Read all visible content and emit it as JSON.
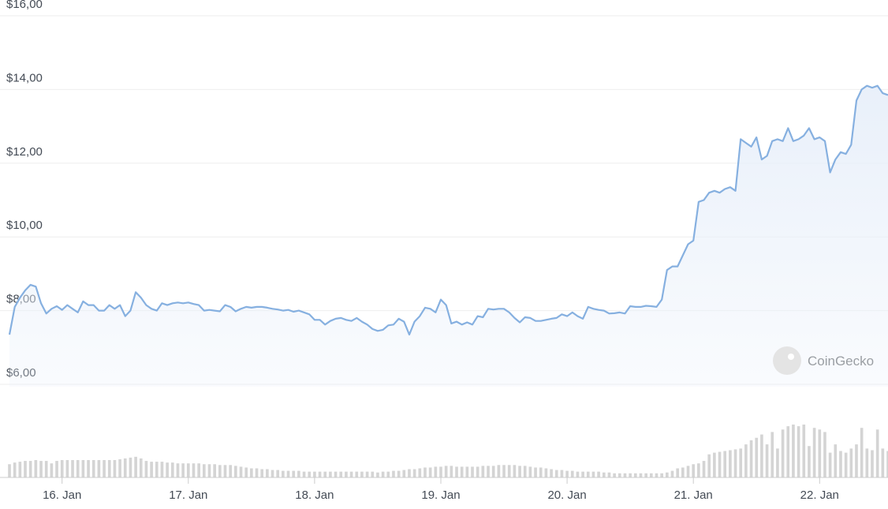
{
  "chart_data": {
    "type": "line",
    "watermark": "CoinGecko",
    "color": "#86b0e0",
    "fill_color": "#e9f0fa",
    "volume_color": "#d4d4d4",
    "grid": true,
    "xlim": [
      -10,
      157
    ],
    "ylim": [
      6,
      16
    ],
    "yticks": [
      {
        "value": 6,
        "label": "$6,00"
      },
      {
        "value": 8,
        "label": "$8,00"
      },
      {
        "value": 10,
        "label": "$10,00"
      },
      {
        "value": 12,
        "label": "$12,00"
      },
      {
        "value": 14,
        "label": "$14,00"
      },
      {
        "value": 16,
        "label": "$16,00"
      }
    ],
    "xticks": [
      {
        "value": 0,
        "label": "16. Jan"
      },
      {
        "value": 24,
        "label": "17. Jan"
      },
      {
        "value": 48,
        "label": "18. Jan"
      },
      {
        "value": 72,
        "label": "19. Jan"
      },
      {
        "value": 96,
        "label": "20. Jan"
      },
      {
        "value": 120,
        "label": "21. Jan"
      },
      {
        "value": 144,
        "label": "22. Jan"
      }
    ],
    "x": [
      -10,
      -9,
      -8,
      -7,
      -6,
      -5,
      -4,
      -3,
      -2,
      -1,
      0,
      1,
      2,
      3,
      4,
      5,
      6,
      7,
      8,
      9,
      10,
      11,
      12,
      13,
      14,
      15,
      16,
      17,
      18,
      19,
      20,
      21,
      22,
      23,
      24,
      25,
      26,
      27,
      28,
      29,
      30,
      31,
      32,
      33,
      34,
      35,
      36,
      37,
      38,
      39,
      40,
      41,
      42,
      43,
      44,
      45,
      46,
      47,
      48,
      49,
      50,
      51,
      52,
      53,
      54,
      55,
      56,
      57,
      58,
      59,
      60,
      61,
      62,
      63,
      64,
      65,
      66,
      67,
      68,
      69,
      70,
      71,
      72,
      73,
      74,
      75,
      76,
      77,
      78,
      79,
      80,
      81,
      82,
      83,
      84,
      85,
      86,
      87,
      88,
      89,
      90,
      91,
      92,
      93,
      94,
      95,
      96,
      97,
      98,
      99,
      100,
      101,
      102,
      103,
      104,
      105,
      106,
      107,
      108,
      109,
      110,
      111,
      112,
      113,
      114,
      115,
      116,
      117,
      118,
      119,
      120,
      121,
      122,
      123,
      124,
      125,
      126,
      127,
      128,
      129,
      130,
      131,
      132,
      133,
      134,
      135,
      136,
      137,
      138,
      139,
      140,
      141,
      142,
      143,
      144,
      145,
      146,
      147,
      148,
      149,
      150,
      151,
      152,
      153,
      154,
      155,
      156,
      157
    ],
    "values": [
      7.35,
      8.1,
      8.35,
      8.55,
      8.7,
      8.65,
      8.2,
      7.92,
      8.05,
      8.12,
      8.02,
      8.15,
      8.05,
      7.95,
      8.25,
      8.15,
      8.15,
      8.0,
      8.0,
      8.15,
      8.05,
      8.15,
      7.85,
      8.0,
      8.5,
      8.35,
      8.15,
      8.05,
      8.0,
      8.2,
      8.15,
      8.2,
      8.22,
      8.2,
      8.22,
      8.18,
      8.15,
      8.0,
      8.02,
      8.0,
      7.98,
      8.15,
      8.1,
      7.98,
      8.05,
      8.1,
      8.08,
      8.1,
      8.1,
      8.08,
      8.05,
      8.03,
      8.0,
      8.02,
      7.97,
      8.0,
      7.95,
      7.9,
      7.75,
      7.75,
      7.62,
      7.72,
      7.78,
      7.8,
      7.75,
      7.72,
      7.8,
      7.7,
      7.62,
      7.5,
      7.45,
      7.48,
      7.6,
      7.62,
      7.78,
      7.7,
      7.35,
      7.7,
      7.85,
      8.08,
      8.05,
      7.95,
      8.3,
      8.15,
      7.65,
      7.7,
      7.62,
      7.68,
      7.62,
      7.85,
      7.82,
      8.05,
      8.03,
      8.05,
      8.05,
      7.95,
      7.8,
      7.68,
      7.82,
      7.8,
      7.72,
      7.72,
      7.75,
      7.78,
      7.8,
      7.9,
      7.85,
      7.95,
      7.85,
      7.78,
      8.1,
      8.05,
      8.02,
      8.0,
      7.92,
      7.93,
      7.95,
      7.92,
      8.12,
      8.1,
      8.1,
      8.13,
      8.12,
      8.1,
      8.3,
      9.1,
      9.2,
      9.2,
      9.5,
      9.8,
      9.9,
      10.95,
      11.0,
      11.2,
      11.25,
      11.2,
      11.3,
      11.35,
      11.25,
      12.65,
      12.55,
      12.45,
      12.7,
      12.1,
      12.2,
      12.6,
      12.65,
      12.6,
      12.95,
      12.6,
      12.65,
      12.75,
      12.95,
      12.65,
      12.7,
      12.6,
      11.75,
      12.1,
      12.3,
      12.25,
      12.5,
      13.7,
      14.0,
      14.1,
      14.05,
      14.1,
      13.9,
      13.85
    ],
    "volumes": [
      16,
      18,
      19,
      20,
      20,
      21,
      20,
      20,
      17,
      20,
      21,
      21,
      21,
      21,
      21,
      21,
      21,
      21,
      21,
      21,
      21,
      22,
      23,
      24,
      25,
      23,
      20,
      19,
      19,
      19,
      18,
      18,
      17,
      17,
      17,
      17,
      17,
      16,
      16,
      16,
      15,
      15,
      15,
      14,
      13,
      12,
      11,
      11,
      10,
      10,
      9,
      9,
      8,
      8,
      8,
      8,
      7,
      7,
      7,
      7,
      7,
      7,
      7,
      7,
      7,
      7,
      7,
      7,
      7,
      7,
      6,
      7,
      7,
      8,
      8,
      9,
      10,
      10,
      11,
      12,
      12,
      13,
      13,
      14,
      14,
      13,
      13,
      13,
      13,
      13,
      14,
      14,
      14,
      15,
      15,
      15,
      15,
      14,
      14,
      13,
      12,
      12,
      11,
      10,
      9,
      9,
      8,
      8,
      7,
      7,
      7,
      7,
      7,
      6,
      6,
      5,
      5,
      5,
      5,
      5,
      5,
      5,
      5,
      5,
      5,
      6,
      8,
      11,
      12,
      14,
      16,
      17,
      20,
      28,
      30,
      31,
      32,
      33,
      34,
      35,
      40,
      45,
      48,
      52,
      40,
      55,
      35,
      58,
      62,
      64,
      62,
      64,
      38,
      60,
      58,
      55,
      30,
      40,
      32,
      30,
      35,
      40,
      60,
      35,
      33,
      58,
      35,
      32
    ]
  }
}
